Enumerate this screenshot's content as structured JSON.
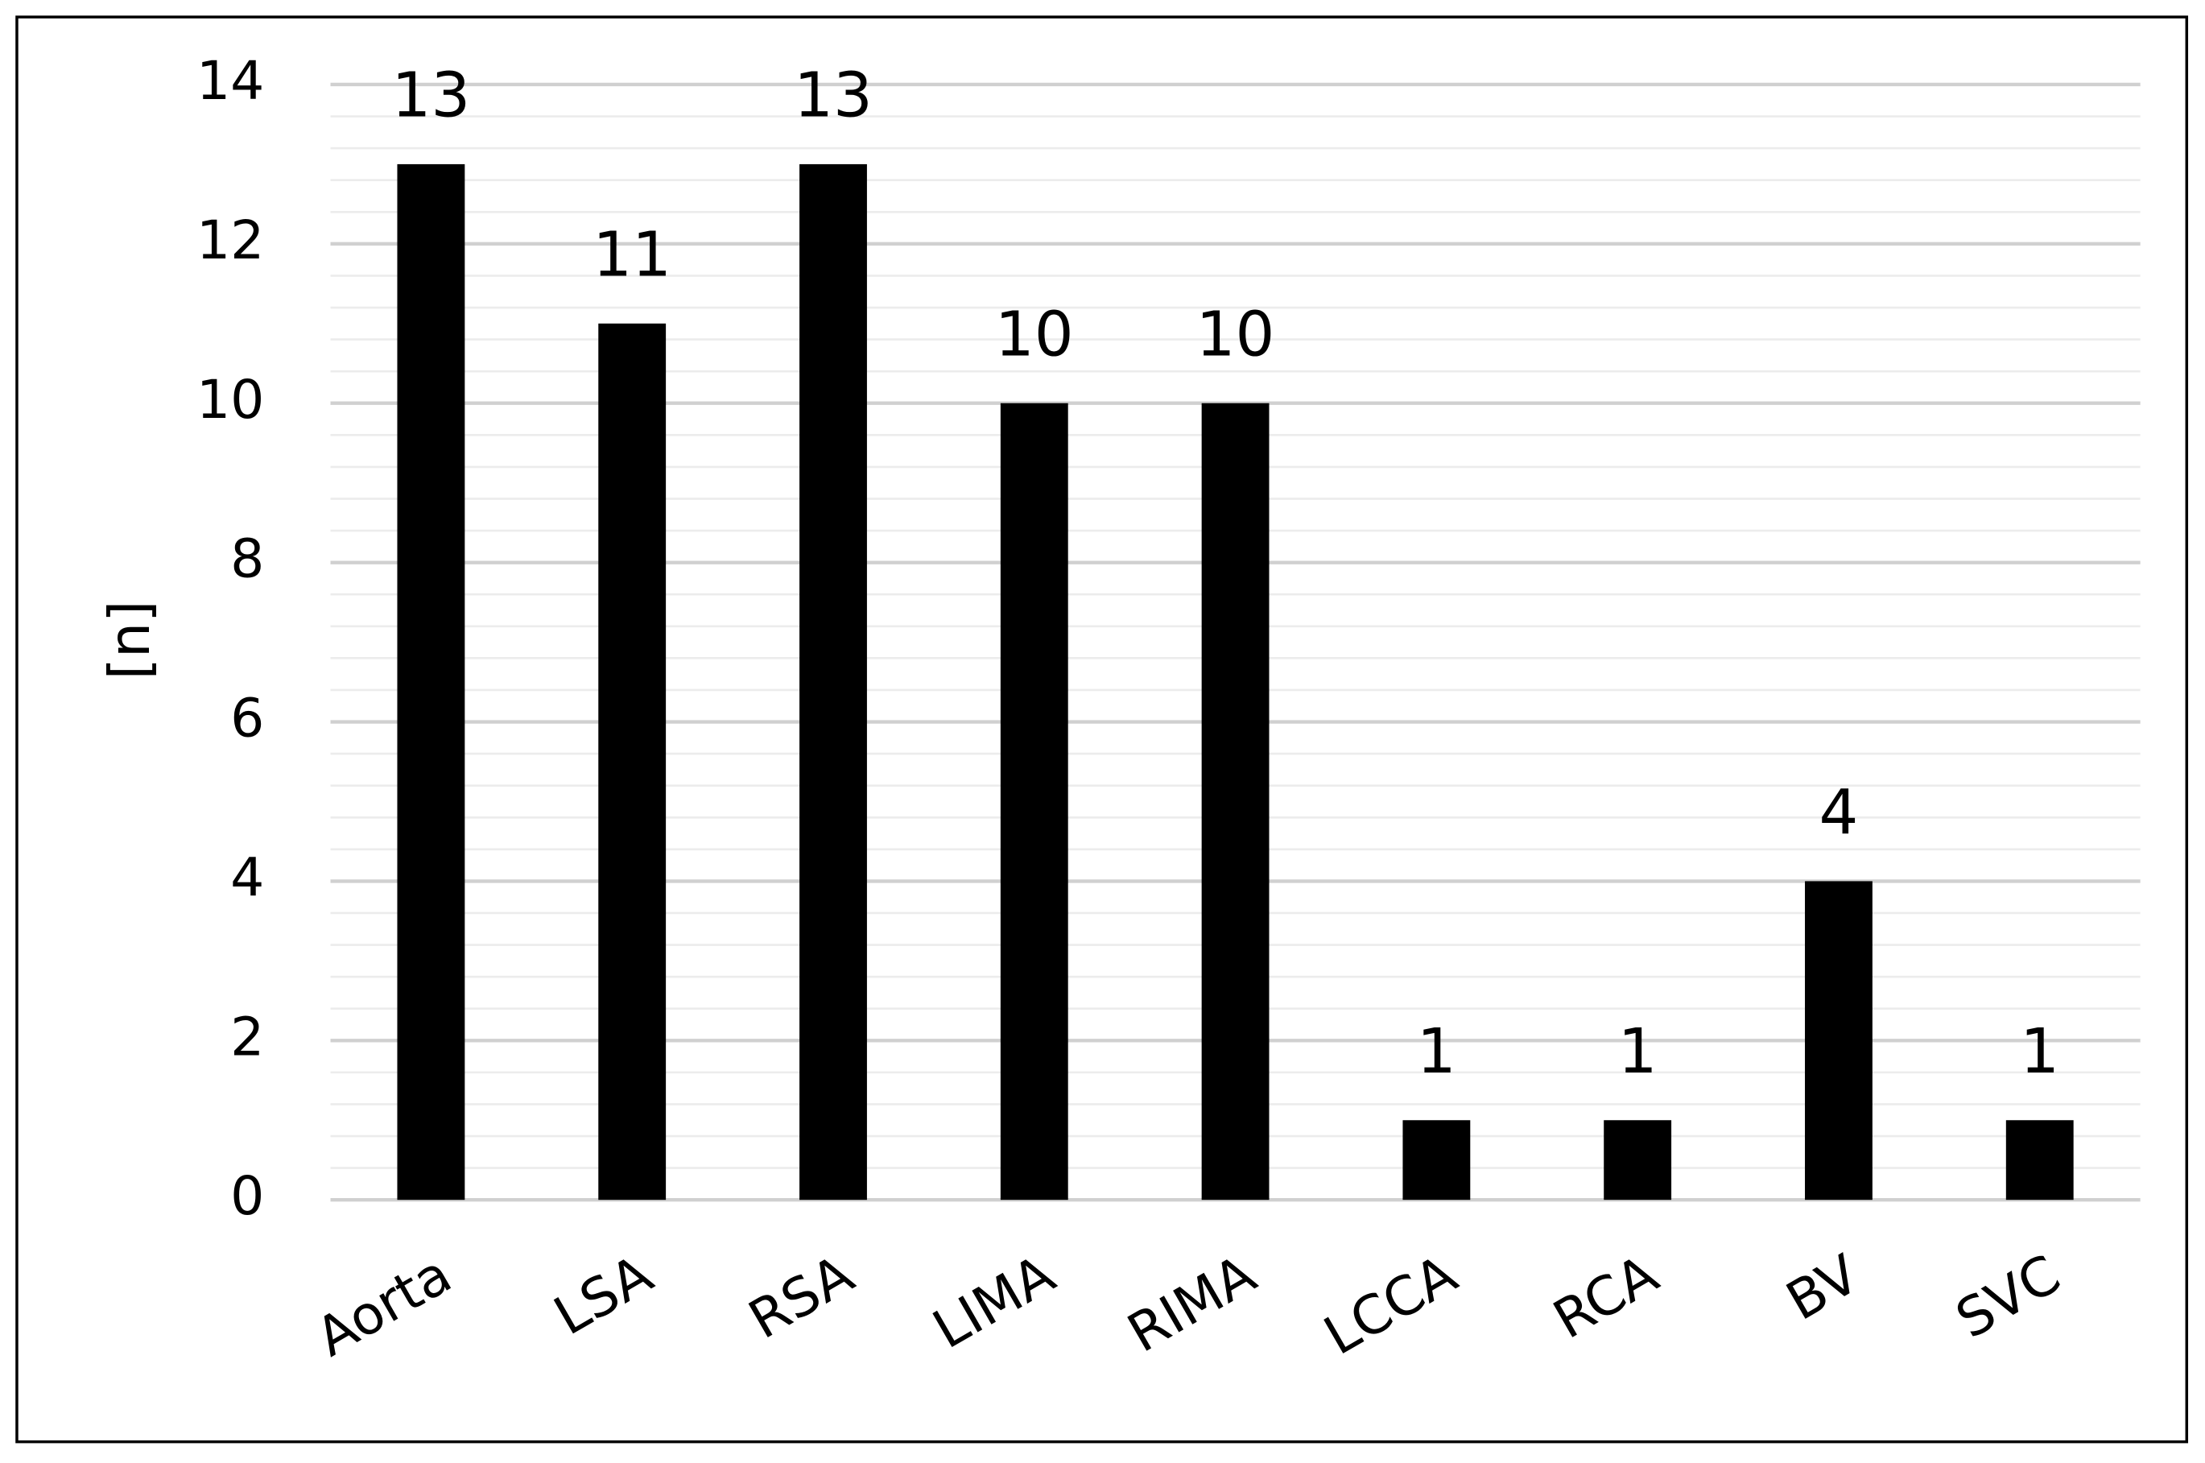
{
  "chart_data": {
    "type": "bar",
    "y_label": "[n]",
    "categories": [
      "Aorta",
      "LSA",
      "RSA",
      "LIMA",
      "RIMA",
      "LCCA",
      "RCA",
      "BV",
      "SVC"
    ],
    "values": [
      13,
      11,
      13,
      10,
      10,
      1,
      1,
      4,
      1
    ],
    "color": "#000000",
    "ylim": [
      0,
      14
    ],
    "yticks": [
      0,
      2,
      4,
      6,
      8,
      10,
      12,
      14
    ],
    "grid": true,
    "minor_grid": true,
    "data_labels": true
  }
}
